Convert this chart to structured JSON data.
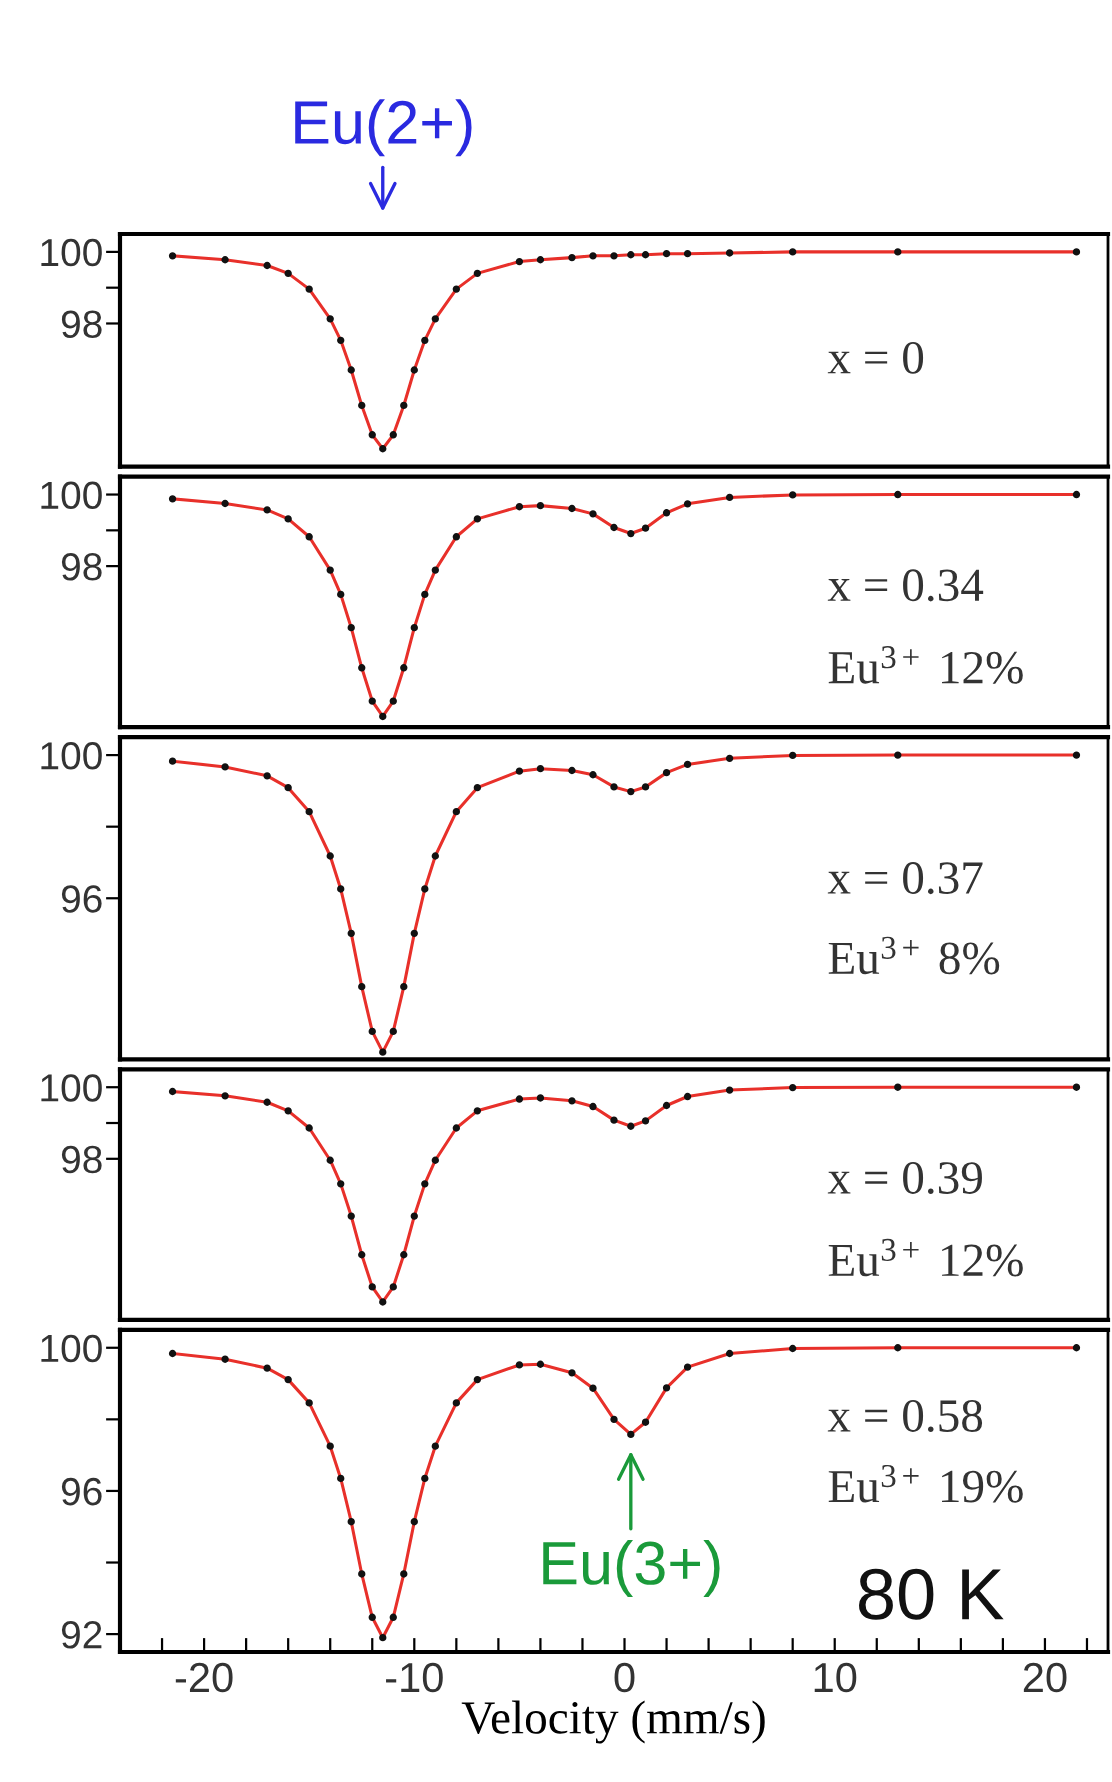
{
  "chart_data": [
    {
      "type": "scatter",
      "x": [
        -21.5,
        -19,
        -17,
        -16,
        -15,
        -14,
        -13.5,
        -13,
        -12.5,
        -12,
        -11.5,
        -11,
        -10.5,
        -10,
        -9.5,
        -9,
        -8,
        -7,
        -5,
        -4,
        -2.5,
        -1.5,
        -0.5,
        0.3,
        1,
        2,
        3,
        5,
        8,
        13,
        21.5
      ],
      "xlim": [
        -24,
        23
      ],
      "ylim": [
        94,
        100.5
      ],
      "yticks": [
        100,
        {
          "value": 99,
          "label": null
        },
        98
      ],
      "tick_labels": "y",
      "series": [
        {
          "color": "#111111",
          "marker": "circle",
          "values": [
            99.89,
            99.78,
            99.62,
            99.4,
            98.96,
            98.13,
            97.53,
            96.7,
            95.71,
            94.89,
            94.5,
            94.89,
            95.71,
            96.7,
            97.53,
            98.13,
            98.96,
            99.4,
            99.73,
            99.78,
            99.84,
            99.89,
            99.89,
            99.92,
            99.92,
            99.95,
            99.95,
            99.97,
            100,
            100,
            100
          ]
        },
        {
          "type": "line",
          "color": "#e8302a",
          "marker": "none",
          "values": [
            99.89,
            99.78,
            99.62,
            99.4,
            98.96,
            98.13,
            97.53,
            96.7,
            95.71,
            94.89,
            94.5,
            94.89,
            95.71,
            96.7,
            97.53,
            98.13,
            98.96,
            99.4,
            99.73,
            99.78,
            99.84,
            99.89,
            99.89,
            99.92,
            99.92,
            99.95,
            99.95,
            99.97,
            100,
            100,
            100
          ]
        }
      ],
      "annotations": [
        {
          "text": "Eu(2+)",
          "x": -11.5
        },
        "x = 0"
      ]
    },
    {
      "type": "scatter",
      "x": [
        -21.5,
        -19,
        -17,
        -16,
        -15,
        -14,
        -13.5,
        -13,
        -12.5,
        -12,
        -11.5,
        -11,
        -10.5,
        -10,
        -9.5,
        -9,
        -8,
        -7,
        -5,
        -4,
        -2.5,
        -1.5,
        -0.5,
        0.3,
        1,
        2,
        3,
        5,
        8,
        13,
        21.5
      ],
      "xlim": [
        -24,
        23
      ],
      "ylim": [
        93.5,
        100.5
      ],
      "yticks": [
        100,
        {
          "value": 99,
          "label": null
        },
        98
      ],
      "tick_labels": "y",
      "series": [
        {
          "color": "#111111",
          "marker": "circle",
          "values": [
            99.88,
            99.75,
            99.57,
            99.32,
            98.82,
            97.89,
            97.21,
            96.28,
            95.16,
            94.23,
            93.8,
            94.23,
            95.16,
            96.28,
            97.21,
            97.89,
            98.82,
            99.32,
            99.66,
            99.69,
            99.61,
            99.46,
            99.08,
            98.91,
            99.06,
            99.49,
            99.74,
            99.92,
            99.99,
            100,
            100
          ]
        },
        {
          "type": "line",
          "color": "#e8302a",
          "marker": "none",
          "values": [
            99.88,
            99.75,
            99.57,
            99.32,
            98.82,
            97.89,
            97.21,
            96.28,
            95.16,
            94.23,
            93.8,
            94.23,
            95.16,
            96.28,
            97.21,
            97.89,
            98.82,
            99.32,
            99.66,
            99.69,
            99.61,
            99.46,
            99.08,
            98.91,
            99.06,
            99.49,
            99.74,
            99.92,
            99.99,
            100,
            100
          ]
        }
      ],
      "annotations": [
        "x = 0.34",
        "Eu$^{3+}$ 12%"
      ]
    },
    {
      "type": "scatter",
      "x": [
        -21.5,
        -19,
        -17,
        -16,
        -15,
        -14,
        -13.5,
        -13,
        -12.5,
        -12,
        -11.5,
        -11,
        -10.5,
        -10,
        -9.5,
        -9,
        -8,
        -7,
        -5,
        -4,
        -2.5,
        -1.5,
        -0.5,
        0.3,
        1,
        2,
        3,
        5,
        8,
        13,
        21.5
      ],
      "xlim": [
        -24,
        23
      ],
      "ylim": [
        91.5,
        100.5
      ],
      "yticks": [
        100,
        {
          "value": 98,
          "label": null
        },
        96
      ],
      "tick_labels": "y",
      "series": [
        {
          "color": "#111111",
          "marker": "circle",
          "values": [
            99.83,
            99.67,
            99.42,
            99.09,
            98.42,
            97.18,
            96.26,
            95.02,
            93.53,
            92.28,
            91.7,
            92.28,
            93.53,
            95.02,
            96.26,
            97.18,
            98.42,
            99.09,
            99.55,
            99.62,
            99.57,
            99.45,
            99.11,
            98.98,
            99.11,
            99.51,
            99.74,
            99.91,
            99.99,
            100,
            100
          ]
        },
        {
          "type": "line",
          "color": "#e8302a",
          "marker": "none",
          "values": [
            99.83,
            99.67,
            99.42,
            99.09,
            98.42,
            97.18,
            96.26,
            95.02,
            93.53,
            92.28,
            91.7,
            92.28,
            93.53,
            95.02,
            96.26,
            97.18,
            98.42,
            99.09,
            99.55,
            99.62,
            99.57,
            99.45,
            99.11,
            98.98,
            99.11,
            99.51,
            99.74,
            99.91,
            99.99,
            100,
            100
          ]
        }
      ],
      "annotations": [
        "x = 0.37",
        "Eu$^{3+}$ 8%"
      ]
    },
    {
      "type": "scatter",
      "x": [
        -21.5,
        -19,
        -17,
        -16,
        -15,
        -14,
        -13.5,
        -13,
        -12.5,
        -12,
        -11.5,
        -11,
        -10.5,
        -10,
        -9.5,
        -9,
        -8,
        -7,
        -5,
        -4,
        -2.5,
        -1.5,
        -0.5,
        0.3,
        1,
        2,
        3,
        5,
        8,
        13,
        21.5
      ],
      "xlim": [
        -24,
        23
      ],
      "ylim": [
        93.5,
        100.5
      ],
      "yticks": [
        100,
        {
          "value": 99,
          "label": null
        },
        98
      ],
      "tick_labels": "y",
      "series": [
        {
          "color": "#111111",
          "marker": "circle",
          "values": [
            99.88,
            99.76,
            99.58,
            99.34,
            98.86,
            97.96,
            97.3,
            96.4,
            95.32,
            94.42,
            94.0,
            94.42,
            95.32,
            96.4,
            97.3,
            97.96,
            98.86,
            99.34,
            99.67,
            99.7,
            99.62,
            99.46,
            99.08,
            98.91,
            99.06,
            99.49,
            99.74,
            99.92,
            99.99,
            100,
            100
          ]
        },
        {
          "type": "line",
          "color": "#e8302a",
          "marker": "none",
          "values": [
            99.88,
            99.76,
            99.58,
            99.34,
            98.86,
            97.96,
            97.3,
            96.4,
            95.32,
            94.42,
            94.0,
            94.42,
            95.32,
            96.4,
            97.3,
            97.96,
            98.86,
            99.34,
            99.67,
            99.7,
            99.62,
            99.46,
            99.08,
            98.91,
            99.06,
            99.49,
            99.74,
            99.92,
            99.99,
            100,
            100
          ]
        }
      ],
      "annotations": [
        "x = 0.39",
        "Eu$^{3+}$ 12%"
      ]
    },
    {
      "type": "scatter",
      "x": [
        -21.5,
        -19,
        -17,
        -16,
        -15,
        -14,
        -13.5,
        -13,
        -12.5,
        -12,
        -11.5,
        -11,
        -10.5,
        -10,
        -9.5,
        -9,
        -8,
        -7,
        -5,
        -4,
        -2.5,
        -1.5,
        -0.5,
        0.3,
        1,
        2,
        3,
        5,
        8,
        13,
        21.5
      ],
      "xlim": [
        -24,
        23
      ],
      "ylim": [
        91.5,
        100.5
      ],
      "yticks": [
        100,
        {
          "value": 98,
          "label": null
        },
        96,
        {
          "value": 94,
          "label": null
        },
        92
      ],
      "xticks": [
        {
          "value": -22,
          "label": null
        },
        -20,
        {
          "value": -18,
          "label": null
        },
        {
          "value": -16,
          "label": null
        },
        {
          "value": -14,
          "label": null
        },
        {
          "value": -12,
          "label": null
        },
        -10,
        {
          "value": -8,
          "label": null
        },
        {
          "value": -6,
          "label": null
        },
        {
          "value": -4,
          "label": null
        },
        {
          "value": -2,
          "label": null
        },
        0,
        {
          "value": 2,
          "label": null
        },
        {
          "value": 4,
          "label": null
        },
        {
          "value": 6,
          "label": null
        },
        {
          "value": 8,
          "label": null
        },
        10,
        {
          "value": 12,
          "label": null
        },
        {
          "value": 14,
          "label": null
        },
        {
          "value": 16,
          "label": null
        },
        {
          "value": 18,
          "label": null
        },
        20,
        {
          "value": 22,
          "label": null
        }
      ],
      "xlabel": "Velocity (mm/s)",
      "series": [
        {
          "color": "#111111",
          "marker": "circle",
          "values": [
            99.84,
            99.68,
            99.43,
            99.11,
            98.46,
            97.25,
            96.35,
            95.14,
            93.68,
            92.47,
            91.9,
            92.47,
            93.68,
            95.14,
            96.35,
            97.25,
            98.46,
            99.11,
            99.52,
            99.54,
            99.3,
            98.87,
            98.0,
            97.58,
            97.92,
            98.88,
            99.46,
            99.84,
            99.98,
            100,
            100
          ]
        },
        {
          "type": "line",
          "color": "#e8302a",
          "marker": "none",
          "values": [
            99.84,
            99.68,
            99.43,
            99.11,
            98.46,
            97.25,
            96.35,
            95.14,
            93.68,
            92.47,
            91.9,
            92.47,
            93.68,
            95.14,
            96.35,
            97.25,
            98.46,
            99.11,
            99.52,
            99.54,
            99.3,
            98.87,
            98.0,
            97.58,
            97.92,
            98.88,
            99.46,
            99.84,
            99.98,
            100,
            100
          ]
        }
      ],
      "annotations": [
        "x = 0.58",
        "Eu$^{3+}$ 19%",
        {
          "text": "Eu(3+)",
          "x": 0.3,
          "y": 97.58
        },
        "80 K"
      ]
    }
  ]
}
